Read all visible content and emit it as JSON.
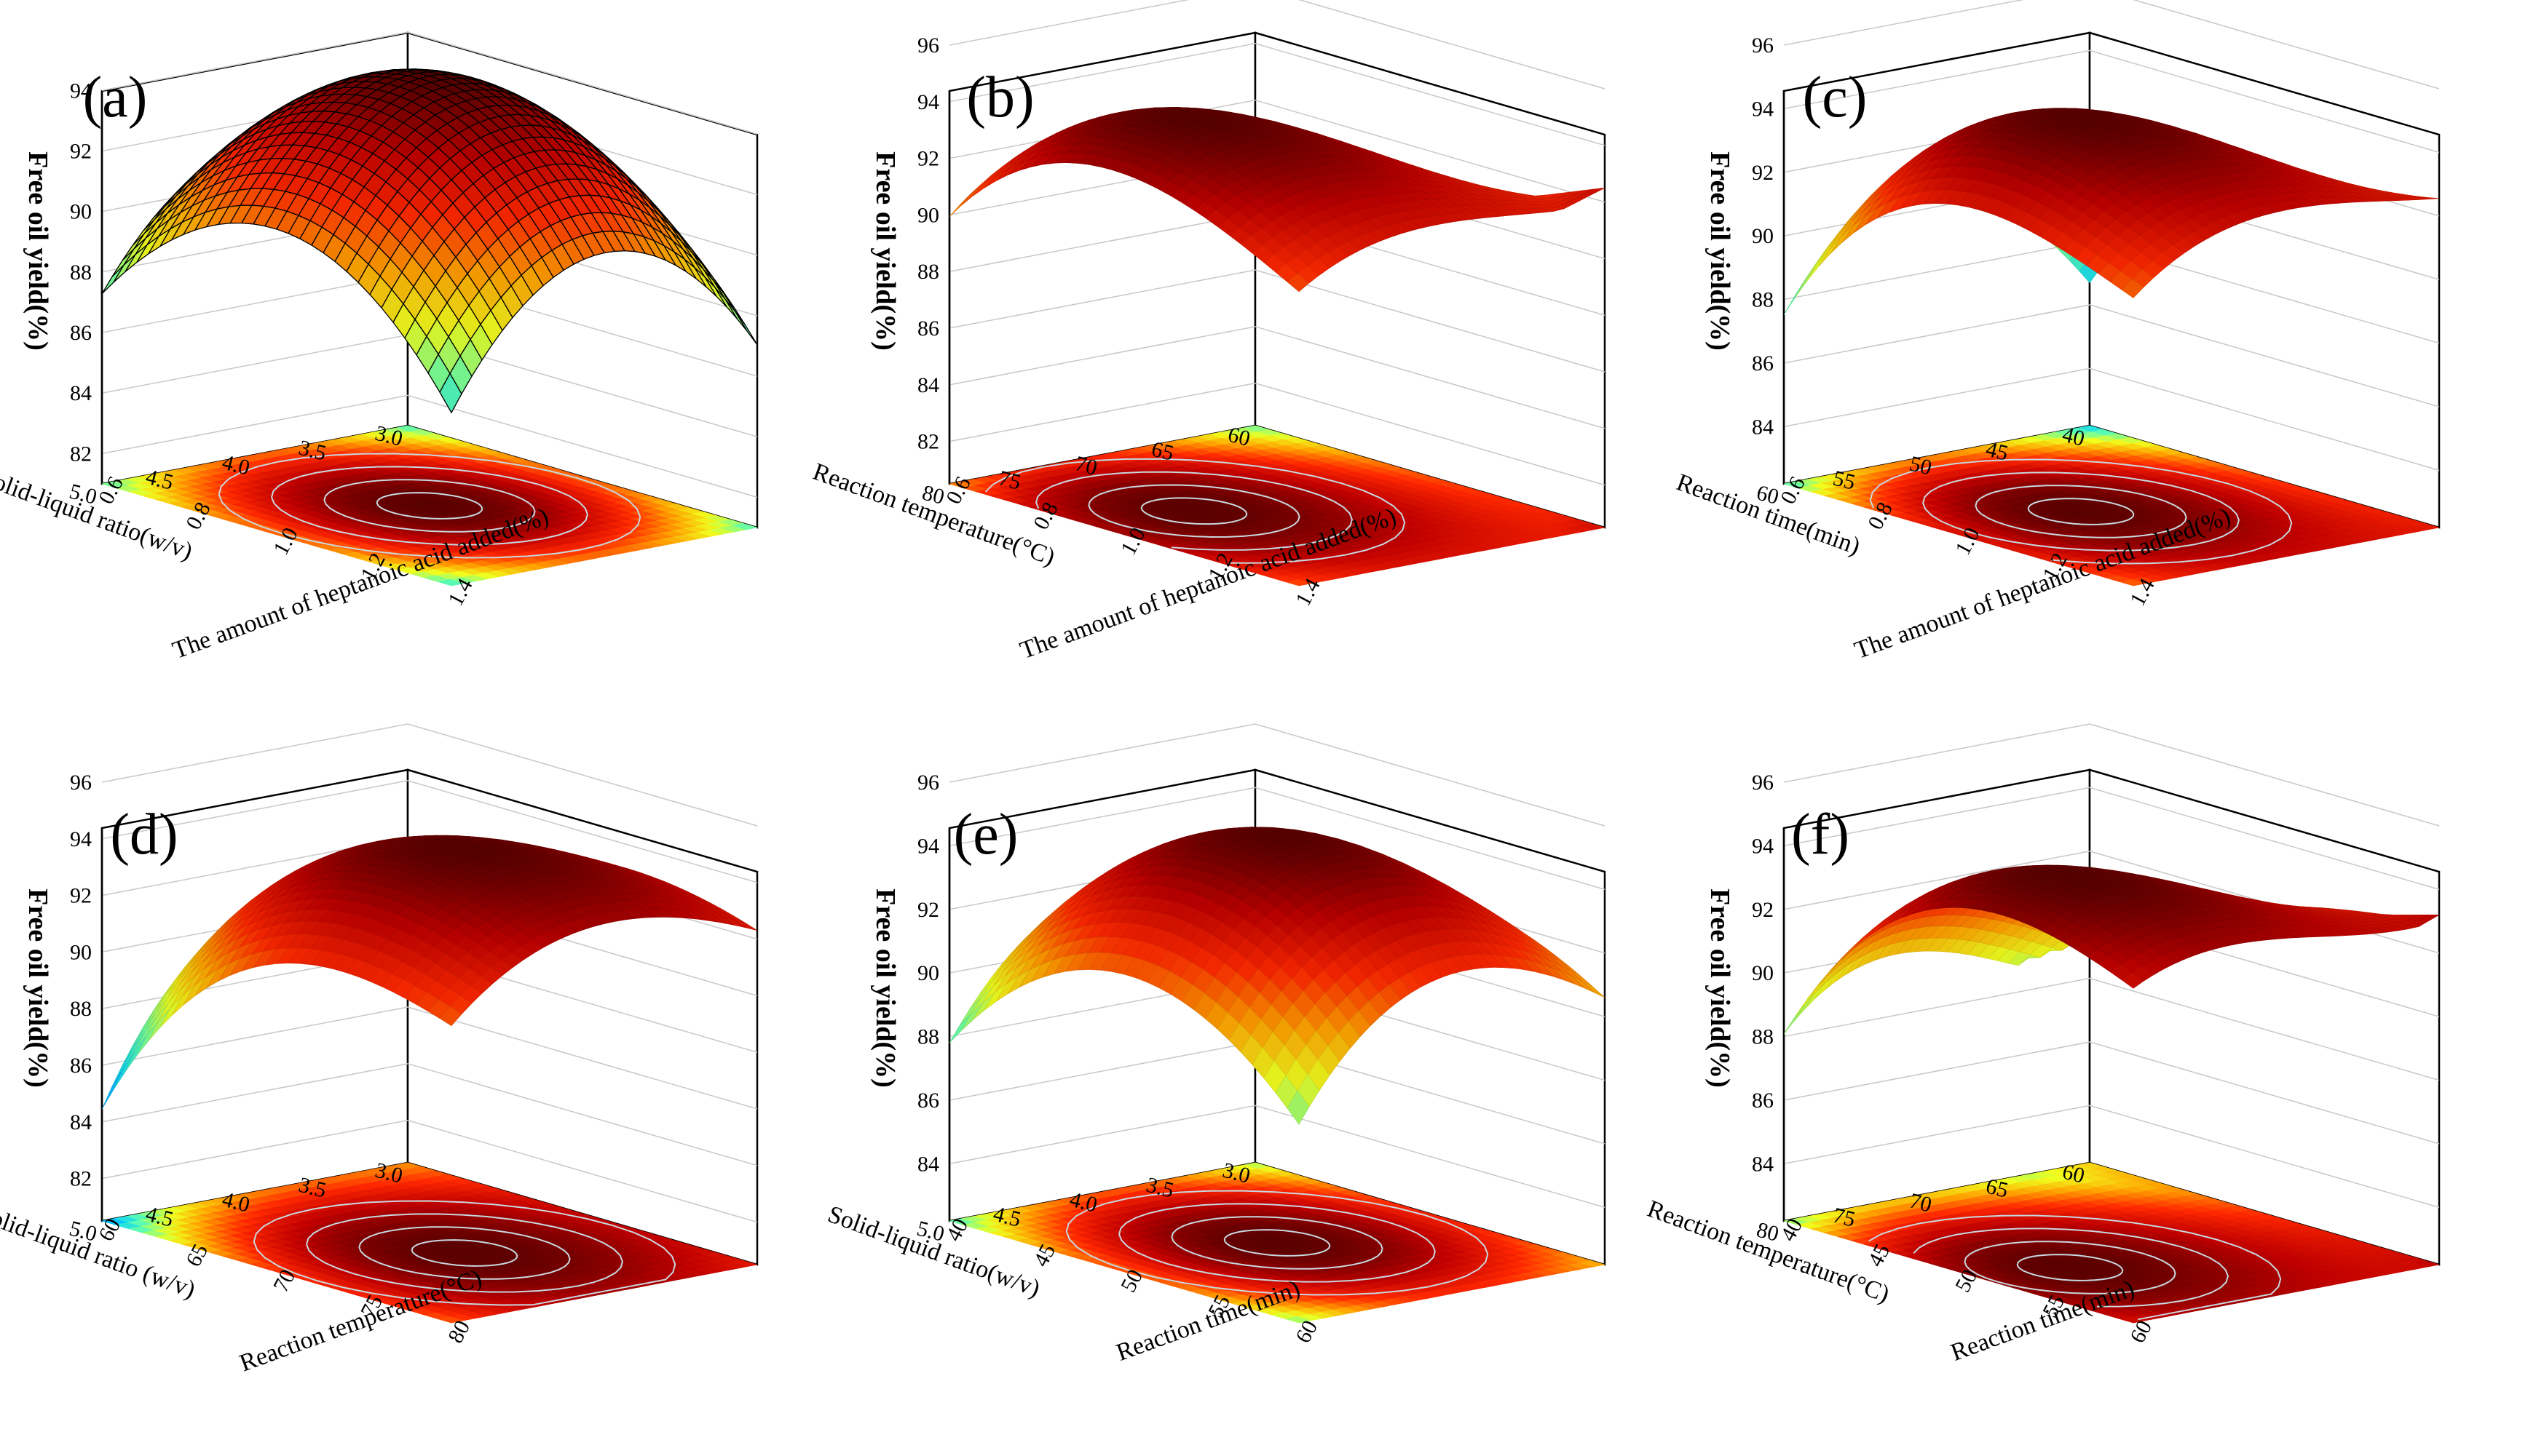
{
  "figure": {
    "background": "#ffffff"
  },
  "colormap": [
    "#00008b",
    "#1e64ff",
    "#00d2ff",
    "#64ffaa",
    "#f0ff1e",
    "#ffa000",
    "#ff2800",
    "#be0000",
    "#5a0000"
  ],
  "chart_data": [
    {
      "type": "surface3d",
      "panel": "(a)",
      "title": "",
      "zlabel": "Free oil yield(%)",
      "xlabel": "Solid-liquid ratio(w/v)",
      "ylabel": "The amount of heptanoic acid added(%)",
      "xrange": [
        3.0,
        5.0
      ],
      "yrange": [
        0.6,
        1.4
      ],
      "xticks": [
        "3.0",
        "3.5",
        "4.0",
        "4.5",
        "5.0"
      ],
      "yticks": [
        "0.6",
        "0.8",
        "1.0",
        "1.2",
        "1.4"
      ],
      "zticks": [
        "82",
        "84",
        "86",
        "88",
        "90",
        "92",
        "94"
      ],
      "zlim": [
        81.0,
        95.5
      ],
      "surface": {
        "peak": 95.2,
        "x_opt": 4.0,
        "y_opt": 1.0,
        "corner_z": [
          85.0,
          85.0,
          85.3,
          84.6
        ]
      },
      "wireframe": true
    },
    {
      "type": "surface3d",
      "panel": "(b)",
      "title": "",
      "zlabel": "Free oil yield(%)",
      "xlabel": "Reaction temperature(°C)",
      "ylabel": "The amount of heptanoic acid added(%)",
      "xrange": [
        60,
        80
      ],
      "yrange": [
        0.6,
        1.4
      ],
      "xticks": [
        "60",
        "65",
        "70",
        "75",
        "80"
      ],
      "yticks": [
        "0.6",
        "0.8",
        "1.0",
        "1.2",
        "1.4"
      ],
      "zticks": [
        "82",
        "84",
        "86",
        "88",
        "90",
        "92",
        "94",
        "96"
      ],
      "zlim": [
        80.5,
        96.0
      ],
      "surface": {
        "peak": 94.4,
        "x_opt": 74,
        "y_opt": 0.95,
        "corner_z": [
          87.4,
          92.5,
          84.5,
          89.0
        ]
      },
      "wireframe": false
    },
    {
      "type": "surface3d",
      "panel": "(c)",
      "title": "",
      "zlabel": "Free oil yield(%)",
      "xlabel": "Reaction time(min)",
      "ylabel": "The amount of heptanoic acid added(%)",
      "xrange": [
        40,
        60
      ],
      "yrange": [
        0.6,
        1.4
      ],
      "xticks": [
        "40",
        "45",
        "50",
        "55",
        "60"
      ],
      "yticks": [
        "0.6",
        "0.8",
        "1.0",
        "1.2",
        "1.4"
      ],
      "zticks": [
        "84",
        "86",
        "88",
        "90",
        "92",
        "94",
        "96"
      ],
      "zlim": [
        82.2,
        96.0
      ],
      "surface": {
        "peak": 94.6,
        "x_opt": 52,
        "y_opt": 1.0,
        "corner_z": [
          86.5,
          92.5,
          83.8,
          89.5
        ]
      },
      "wireframe": false
    },
    {
      "type": "surface3d",
      "panel": "(d)",
      "title": "",
      "zlabel": "Free oil yield(%)",
      "xlabel": "Solid-liquid ratio (w/v)",
      "ylabel": "Reaction temperature(°C)",
      "xrange": [
        3.0,
        5.0
      ],
      "yrange": [
        60,
        80
      ],
      "xticks": [
        "3.0",
        "3.5",
        "4.0",
        "4.5",
        "5.0"
      ],
      "yticks": [
        "60",
        "65",
        "70",
        "75",
        "80"
      ],
      "zticks": [
        "82",
        "84",
        "86",
        "88",
        "90",
        "92",
        "94",
        "96"
      ],
      "zlim": [
        80.5,
        96.0
      ],
      "surface": {
        "peak": 94.8,
        "x_opt": 4.0,
        "y_opt": 72,
        "corner_z": [
          90.2,
          91.0,
          84.2,
          89.0
        ]
      },
      "wireframe": false
    },
    {
      "type": "surface3d",
      "panel": "(e)",
      "title": "",
      "zlabel": "Free oil yield(%)",
      "xlabel": "Solid-liquid ratio(w/v)",
      "ylabel": "Reaction time(min)",
      "xrange": [
        3.0,
        5.0
      ],
      "yrange": [
        40,
        60
      ],
      "xticks": [
        "3.0",
        "3.5",
        "4.0",
        "4.5",
        "5.0"
      ],
      "yticks": [
        "40",
        "45",
        "50",
        "55",
        "60"
      ],
      "zticks": [
        "84",
        "86",
        "88",
        "90",
        "92",
        "94",
        "96"
      ],
      "zlim": [
        82.2,
        96.0
      ],
      "surface": {
        "peak": 95.0,
        "x_opt": 4.0,
        "y_opt": 50,
        "corner_z": [
          87.2,
          89.5,
          86.0,
          86.8
        ]
      },
      "wireframe": false
    },
    {
      "type": "surface3d",
      "panel": "(f)",
      "title": "",
      "zlabel": "Free oil yield(%)",
      "xlabel": "Reaction temperature(°C)",
      "ylabel": "Reaction time(min)",
      "xrange": [
        60,
        80
      ],
      "yrange": [
        40,
        60
      ],
      "xticks": [
        "60",
        "65",
        "70",
        "75",
        "80"
      ],
      "yticks": [
        "40",
        "45",
        "50",
        "55",
        "60"
      ],
      "zticks": [
        "84",
        "86",
        "88",
        "90",
        "92",
        "94",
        "96"
      ],
      "zlim": [
        82.2,
        96.0
      ],
      "surface": {
        "peak": 94.5,
        "x_opt": 75,
        "y_opt": 52,
        "corner_z": [
          90.0,
          93.2,
          85.0,
          89.5
        ]
      },
      "wireframe": false
    }
  ]
}
